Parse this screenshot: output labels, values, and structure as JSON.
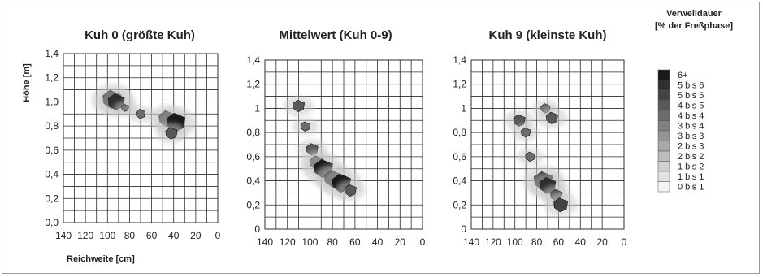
{
  "chart_data": [
    {
      "type": "heatmap",
      "title": "Kuh 0 (größte Kuh)",
      "xlabel": "Reichweite [cm]",
      "ylabel": "Höhe [m]",
      "xlim": [
        140,
        0
      ],
      "ylim": [
        0,
        1.4
      ],
      "xticks": [
        "140",
        "120",
        "100",
        "80",
        "60",
        "40",
        "20",
        "0"
      ],
      "yticks": [
        "0,0",
        "0,2",
        "0,4",
        "0,6",
        "0,8",
        "1,0",
        "1,2",
        "1,4"
      ],
      "grid": true,
      "hotspots": [
        {
          "x": 96,
          "y": 1.02,
          "level": 6
        },
        {
          "x": 92,
          "y": 1.0,
          "level": 5
        },
        {
          "x": 46,
          "y": 0.86,
          "level": 5
        },
        {
          "x": 38,
          "y": 0.83,
          "level": 6
        },
        {
          "x": 42,
          "y": 0.74,
          "level": 3
        },
        {
          "x": 70,
          "y": 0.9,
          "level": 2
        },
        {
          "x": 84,
          "y": 0.95,
          "level": 1
        }
      ]
    },
    {
      "type": "heatmap",
      "title": "Mittelwert (Kuh 0-9)",
      "xlabel": "",
      "ylabel": "",
      "xlim": [
        140,
        0
      ],
      "ylim": [
        0,
        1.4
      ],
      "xticks": [
        "140",
        "120",
        "100",
        "80",
        "60",
        "40",
        "20",
        "0"
      ],
      "yticks": [
        "0",
        "0,2",
        "0,4",
        "0,6",
        "0,8",
        "1",
        "1,2",
        "1,4"
      ],
      "grid": true,
      "hotspots": [
        {
          "x": 110,
          "y": 1.02,
          "level": 3
        },
        {
          "x": 104,
          "y": 0.85,
          "level": 2
        },
        {
          "x": 98,
          "y": 0.66,
          "level": 3
        },
        {
          "x": 94,
          "y": 0.55,
          "level": 4
        },
        {
          "x": 88,
          "y": 0.5,
          "level": 6
        },
        {
          "x": 80,
          "y": 0.42,
          "level": 5
        },
        {
          "x": 72,
          "y": 0.38,
          "level": 6
        },
        {
          "x": 64,
          "y": 0.32,
          "level": 3
        }
      ]
    },
    {
      "type": "heatmap",
      "title": "Kuh 9 (kleinste Kuh)",
      "xlabel": "",
      "ylabel": "",
      "xlim": [
        140,
        0
      ],
      "ylim": [
        0,
        1.4
      ],
      "xticks": [
        "140",
        "120",
        "100",
        "80",
        "60",
        "40",
        "20",
        "0"
      ],
      "yticks": [
        "0",
        "0,2",
        "0,4",
        "0,6",
        "0,8",
        "1",
        "1,2",
        "1,4"
      ],
      "grid": true,
      "hotspots": [
        {
          "x": 96,
          "y": 0.9,
          "level": 3
        },
        {
          "x": 90,
          "y": 0.8,
          "level": 2
        },
        {
          "x": 72,
          "y": 1.0,
          "level": 2
        },
        {
          "x": 66,
          "y": 0.92,
          "level": 3
        },
        {
          "x": 86,
          "y": 0.6,
          "level": 2
        },
        {
          "x": 74,
          "y": 0.4,
          "level": 6
        },
        {
          "x": 70,
          "y": 0.36,
          "level": 5
        },
        {
          "x": 62,
          "y": 0.28,
          "level": 3
        },
        {
          "x": 58,
          "y": 0.2,
          "level": 4
        }
      ]
    }
  ],
  "legend": {
    "title_lines": [
      "Verweildauer",
      "[% der Freßphase]"
    ],
    "entries": [
      {
        "label": "6+",
        "color": "#1a1a1a"
      },
      {
        "label": "5 bis 6",
        "color": "#2f2f2f"
      },
      {
        "label": "5 bis 5",
        "color": "#444444"
      },
      {
        "label": "4 bis 5",
        "color": "#585858"
      },
      {
        "label": "4 bis 4",
        "color": "#6c6c6c"
      },
      {
        "label": "3 bis 4",
        "color": "#808080"
      },
      {
        "label": "3 bis 3",
        "color": "#949494"
      },
      {
        "label": "2 bis 3",
        "color": "#a8a8a8"
      },
      {
        "label": "2 bis 2",
        "color": "#bcbcbc"
      },
      {
        "label": "1 bis 2",
        "color": "#d0d0d0"
      },
      {
        "label": "1 bis 1",
        "color": "#e2e2e2"
      },
      {
        "label": "0 bis 1",
        "color": "#f4f4f4"
      }
    ]
  }
}
